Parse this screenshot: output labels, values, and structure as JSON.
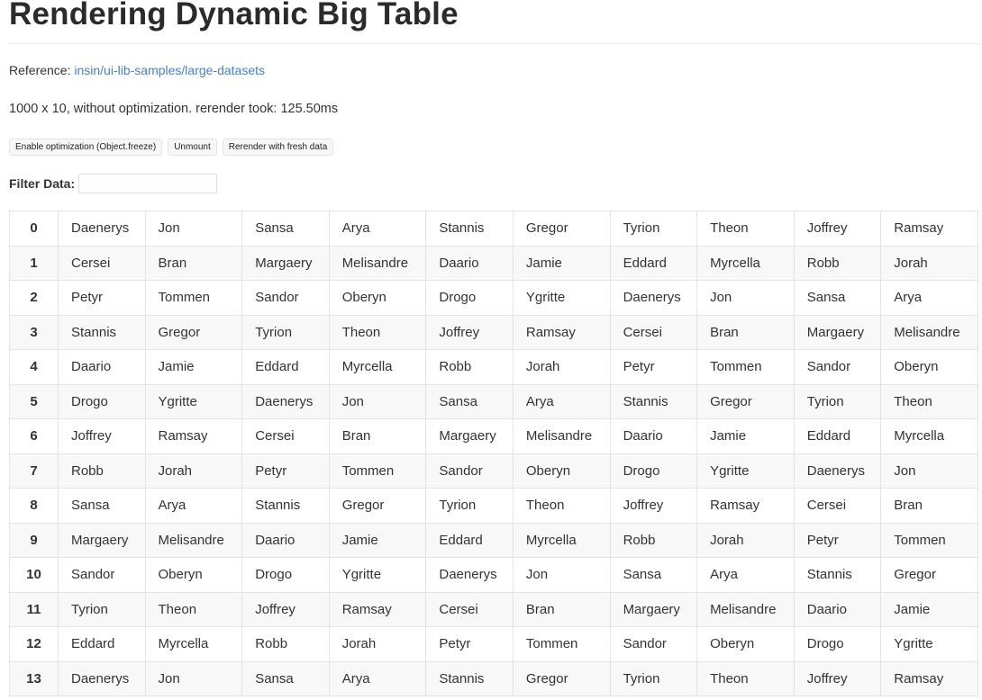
{
  "title": "Rendering Dynamic Big Table",
  "reference": {
    "label": "Reference:",
    "link": "insin/ui-lib-samples/large-datasets"
  },
  "info": "1000 x 10, without optimization. rerender took: 125.50ms",
  "buttons": [
    "Enable optimization (Object.freeze)",
    "Unmount",
    "Rerender with fresh data"
  ],
  "filter": {
    "label": "Filter Data",
    "colon": ":",
    "value": ""
  },
  "rows": [
    [
      "0",
      "Daenerys",
      "Jon",
      "Sansa",
      "Arya",
      "Stannis",
      "Gregor",
      "Tyrion",
      "Theon",
      "Joffrey",
      "Ramsay"
    ],
    [
      "1",
      "Cersei",
      "Bran",
      "Margaery",
      "Melisandre",
      "Daario",
      "Jamie",
      "Eddard",
      "Myrcella",
      "Robb",
      "Jorah"
    ],
    [
      "2",
      "Petyr",
      "Tommen",
      "Sandor",
      "Oberyn",
      "Drogo",
      "Ygritte",
      "Daenerys",
      "Jon",
      "Sansa",
      "Arya"
    ],
    [
      "3",
      "Stannis",
      "Gregor",
      "Tyrion",
      "Theon",
      "Joffrey",
      "Ramsay",
      "Cersei",
      "Bran",
      "Margaery",
      "Melisandre"
    ],
    [
      "4",
      "Daario",
      "Jamie",
      "Eddard",
      "Myrcella",
      "Robb",
      "Jorah",
      "Petyr",
      "Tommen",
      "Sandor",
      "Oberyn"
    ],
    [
      "5",
      "Drogo",
      "Ygritte",
      "Daenerys",
      "Jon",
      "Sansa",
      "Arya",
      "Stannis",
      "Gregor",
      "Tyrion",
      "Theon"
    ],
    [
      "6",
      "Joffrey",
      "Ramsay",
      "Cersei",
      "Bran",
      "Margaery",
      "Melisandre",
      "Daario",
      "Jamie",
      "Eddard",
      "Myrcella"
    ],
    [
      "7",
      "Robb",
      "Jorah",
      "Petyr",
      "Tommen",
      "Sandor",
      "Oberyn",
      "Drogo",
      "Ygritte",
      "Daenerys",
      "Jon"
    ],
    [
      "8",
      "Sansa",
      "Arya",
      "Stannis",
      "Gregor",
      "Tyrion",
      "Theon",
      "Joffrey",
      "Ramsay",
      "Cersei",
      "Bran"
    ],
    [
      "9",
      "Margaery",
      "Melisandre",
      "Daario",
      "Jamie",
      "Eddard",
      "Myrcella",
      "Robb",
      "Jorah",
      "Petyr",
      "Tommen"
    ],
    [
      "10",
      "Sandor",
      "Oberyn",
      "Drogo",
      "Ygritte",
      "Daenerys",
      "Jon",
      "Sansa",
      "Arya",
      "Stannis",
      "Gregor"
    ],
    [
      "11",
      "Tyrion",
      "Theon",
      "Joffrey",
      "Ramsay",
      "Cersei",
      "Bran",
      "Margaery",
      "Melisandre",
      "Daario",
      "Jamie"
    ],
    [
      "12",
      "Eddard",
      "Myrcella",
      "Robb",
      "Jorah",
      "Petyr",
      "Tommen",
      "Sandor",
      "Oberyn",
      "Drogo",
      "Ygritte"
    ],
    [
      "13",
      "Daenerys",
      "Jon",
      "Sansa",
      "Arya",
      "Stannis",
      "Gregor",
      "Tyrion",
      "Theon",
      "Joffrey",
      "Ramsay"
    ]
  ]
}
